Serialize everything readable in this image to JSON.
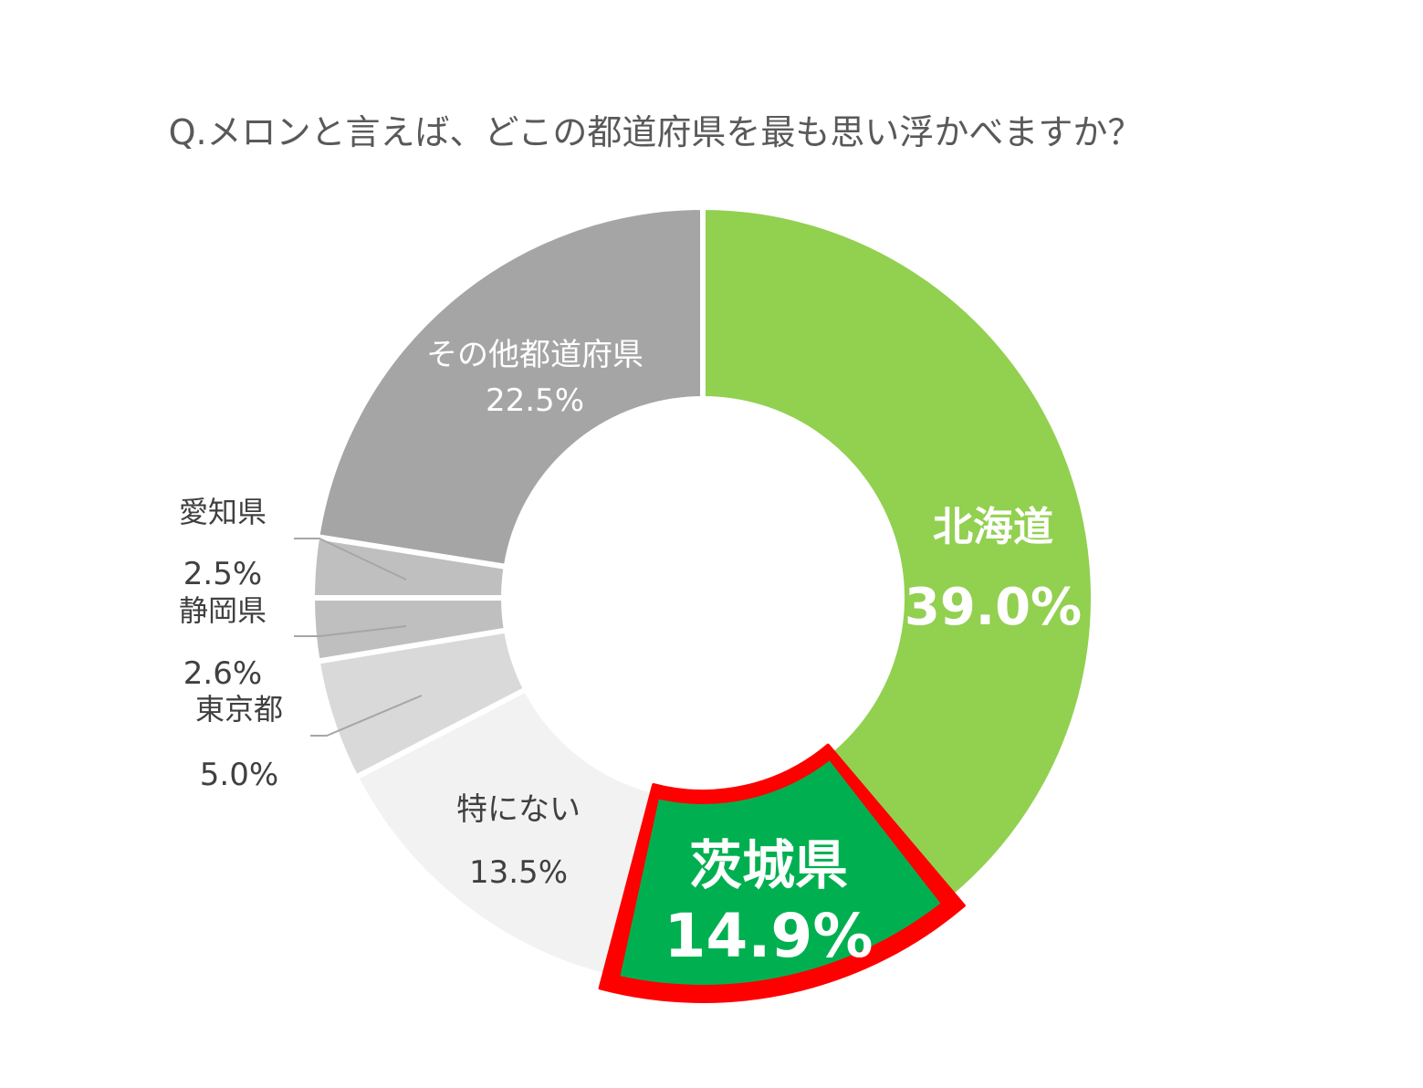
{
  "chart_data": {
    "type": "pie",
    "variant": "donut",
    "title": "Q.メロンと言えば、どこの都道府県を最も思い浮かべますか？",
    "slices": [
      {
        "key": "hokkaido",
        "label": "北海道",
        "value": 39.0,
        "value_label": "39.0%",
        "color": "#92d050"
      },
      {
        "key": "ibaraki",
        "label": "茨城県",
        "value": 14.9,
        "value_label": "14.9%",
        "color": "#00b050",
        "highlight": true,
        "highlight_color": "#ff0000"
      },
      {
        "key": "none",
        "label": "特にない",
        "value": 13.5,
        "value_label": "13.5%",
        "color": "#f2f2f2"
      },
      {
        "key": "tokyo",
        "label": "東京都",
        "value": 5.0,
        "value_label": "5.0%",
        "color": "#d9d9d9"
      },
      {
        "key": "shizuoka",
        "label": "静岡県",
        "value": 2.6,
        "value_label": "2.6%",
        "color": "#bfbfbf"
      },
      {
        "key": "aichi",
        "label": "愛知県",
        "value": 2.5,
        "value_label": "2.5%",
        "color": "#bfbfbf"
      },
      {
        "key": "other",
        "label": "その他都道府県",
        "value": 22.5,
        "value_label": "22.5%",
        "color": "#a5a5a5"
      }
    ],
    "start_angle_deg": 0,
    "direction": "clockwise",
    "legend": "none"
  }
}
